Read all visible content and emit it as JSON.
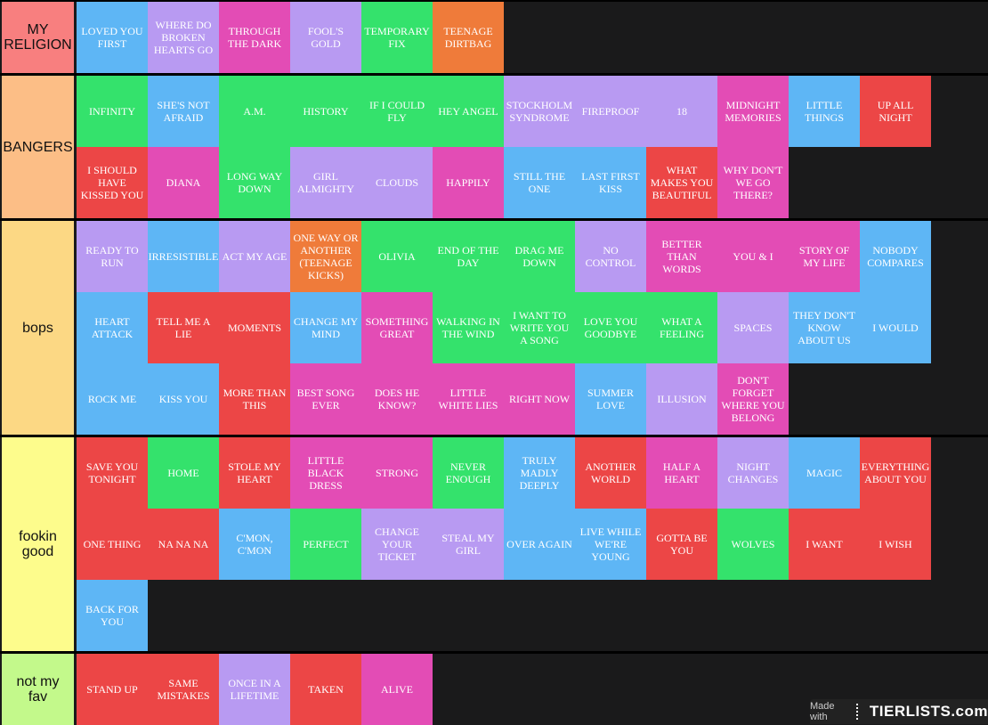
{
  "colors": {
    "blue": "#5eb6f5",
    "lavender": "#b89af2",
    "pink": "#e34cb5",
    "green": "#34e26c",
    "orange": "#ef7b3a",
    "red": "#ec4646"
  },
  "watermark": {
    "made_with": "Made with",
    "brand": "TIERLISTS.com"
  },
  "tiers": [
    {
      "name": "MY\nRELIGION",
      "color": "#f87f7f",
      "items": [
        {
          "label": "LOVED YOU FIRST",
          "color": "blue"
        },
        {
          "label": "WHERE DO BROKEN HEARTS GO",
          "color": "lavender"
        },
        {
          "label": "THROUGH THE DARK",
          "color": "pink"
        },
        {
          "label": "FOOL'S GOLD",
          "color": "lavender"
        },
        {
          "label": "TEMPORARY FIX",
          "color": "green"
        },
        {
          "label": "TEENAGE DIRTBAG",
          "color": "orange"
        }
      ]
    },
    {
      "name": "BANGERS",
      "color": "#fcbe86",
      "items": [
        {
          "label": "INFINITY",
          "color": "green"
        },
        {
          "label": "SHE'S NOT AFRAID",
          "color": "blue"
        },
        {
          "label": "A.M.",
          "color": "green"
        },
        {
          "label": "HISTORY",
          "color": "green"
        },
        {
          "label": "IF I COULD FLY",
          "color": "green"
        },
        {
          "label": "HEY ANGEL",
          "color": "green"
        },
        {
          "label": "STOCKHOLM SYNDROME",
          "color": "lavender"
        },
        {
          "label": "FIREPROOF",
          "color": "lavender"
        },
        {
          "label": "18",
          "color": "lavender"
        },
        {
          "label": "MIDNIGHT MEMORIES",
          "color": "pink"
        },
        {
          "label": "LITTLE THINGS",
          "color": "blue"
        },
        {
          "label": "UP ALL NIGHT",
          "color": "red"
        },
        {
          "label": "I SHOULD HAVE KISSED YOU",
          "color": "red"
        },
        {
          "label": "DIANA",
          "color": "pink"
        },
        {
          "label": "LONG WAY DOWN",
          "color": "green"
        },
        {
          "label": "GIRL ALMIGHTY",
          "color": "lavender"
        },
        {
          "label": "CLOUDS",
          "color": "lavender"
        },
        {
          "label": "HAPPILY",
          "color": "pink"
        },
        {
          "label": "STILL THE ONE",
          "color": "blue"
        },
        {
          "label": "LAST FIRST KISS",
          "color": "blue"
        },
        {
          "label": "WHAT MAKES YOU BEAUTIFUL",
          "color": "red"
        },
        {
          "label": "WHY DON'T WE GO THERE?",
          "color": "pink"
        }
      ]
    },
    {
      "name": "bops",
      "color": "#fcd884",
      "items": [
        {
          "label": "READY TO RUN",
          "color": "lavender"
        },
        {
          "label": "IRRESISTIBLE",
          "color": "blue"
        },
        {
          "label": "ACT MY AGE",
          "color": "lavender"
        },
        {
          "label": "ONE WAY OR ANOTHER (TEENAGE KICKS)",
          "color": "orange"
        },
        {
          "label": "OLIVIA",
          "color": "green"
        },
        {
          "label": "END OF THE DAY",
          "color": "green"
        },
        {
          "label": "DRAG ME DOWN",
          "color": "green"
        },
        {
          "label": "NO CONTROL",
          "color": "lavender"
        },
        {
          "label": "BETTER THAN WORDS",
          "color": "pink"
        },
        {
          "label": "YOU & I",
          "color": "pink"
        },
        {
          "label": "STORY OF MY LIFE",
          "color": "pink"
        },
        {
          "label": "NOBODY COMPARES",
          "color": "blue"
        },
        {
          "label": "HEART ATTACK",
          "color": "blue"
        },
        {
          "label": "TELL ME A LIE",
          "color": "red"
        },
        {
          "label": "MOMENTS",
          "color": "red"
        },
        {
          "label": "CHANGE MY MIND",
          "color": "blue"
        },
        {
          "label": "SOMETHING GREAT",
          "color": "pink"
        },
        {
          "label": "WALKING IN THE WIND",
          "color": "green"
        },
        {
          "label": "I WANT TO WRITE YOU A SONG",
          "color": "green"
        },
        {
          "label": "LOVE YOU GOODBYE",
          "color": "green"
        },
        {
          "label": "WHAT A FEELING",
          "color": "green"
        },
        {
          "label": "SPACES",
          "color": "lavender"
        },
        {
          "label": "THEY DON'T KNOW ABOUT US",
          "color": "blue"
        },
        {
          "label": "I WOULD",
          "color": "blue"
        },
        {
          "label": "ROCK ME",
          "color": "blue"
        },
        {
          "label": "KISS YOU",
          "color": "blue"
        },
        {
          "label": "MORE THAN THIS",
          "color": "red"
        },
        {
          "label": "BEST SONG EVER",
          "color": "pink"
        },
        {
          "label": "DOES HE KNOW?",
          "color": "pink"
        },
        {
          "label": "LITTLE WHITE LIES",
          "color": "pink"
        },
        {
          "label": "RIGHT NOW",
          "color": "pink"
        },
        {
          "label": "SUMMER LOVE",
          "color": "blue"
        },
        {
          "label": "ILLUSION",
          "color": "lavender"
        },
        {
          "label": "DON'T FORGET WHERE YOU BELONG",
          "color": "pink"
        }
      ]
    },
    {
      "name": "fookin\ngood",
      "color": "#fdfc8c",
      "items": [
        {
          "label": "SAVE YOU TONIGHT",
          "color": "red"
        },
        {
          "label": "HOME",
          "color": "green"
        },
        {
          "label": "STOLE MY HEART",
          "color": "red"
        },
        {
          "label": "LITTLE BLACK DRESS",
          "color": "pink"
        },
        {
          "label": "STRONG",
          "color": "pink"
        },
        {
          "label": "NEVER ENOUGH",
          "color": "green"
        },
        {
          "label": "TRULY MADLY DEEPLY",
          "color": "blue"
        },
        {
          "label": "ANOTHER WORLD",
          "color": "red"
        },
        {
          "label": "HALF A HEART",
          "color": "pink"
        },
        {
          "label": "NIGHT CHANGES",
          "color": "lavender"
        },
        {
          "label": "MAGIC",
          "color": "blue"
        },
        {
          "label": "EVERYTHING ABOUT YOU",
          "color": "red"
        },
        {
          "label": "ONE THING",
          "color": "red"
        },
        {
          "label": "NA NA NA",
          "color": "red"
        },
        {
          "label": "C'MON, C'MON",
          "color": "blue"
        },
        {
          "label": "PERFECT",
          "color": "green"
        },
        {
          "label": "CHANGE YOUR TICKET",
          "color": "lavender"
        },
        {
          "label": "STEAL MY GIRL",
          "color": "lavender"
        },
        {
          "label": "OVER AGAIN",
          "color": "blue"
        },
        {
          "label": "LIVE WHILE WE'RE YOUNG",
          "color": "blue"
        },
        {
          "label": "GOTTA BE YOU",
          "color": "red"
        },
        {
          "label": "WOLVES",
          "color": "green"
        },
        {
          "label": "I WANT",
          "color": "red"
        },
        {
          "label": "I WISH",
          "color": "red"
        },
        {
          "label": "BACK FOR YOU",
          "color": "blue"
        }
      ]
    },
    {
      "name": "not my\nfav",
      "color": "#c3f98b",
      "items": [
        {
          "label": "STAND UP",
          "color": "red"
        },
        {
          "label": "SAME MISTAKES",
          "color": "red"
        },
        {
          "label": "ONCE IN A LIFETIME",
          "color": "lavender"
        },
        {
          "label": "TAKEN",
          "color": "red"
        },
        {
          "label": "ALIVE",
          "color": "pink"
        }
      ]
    }
  ]
}
